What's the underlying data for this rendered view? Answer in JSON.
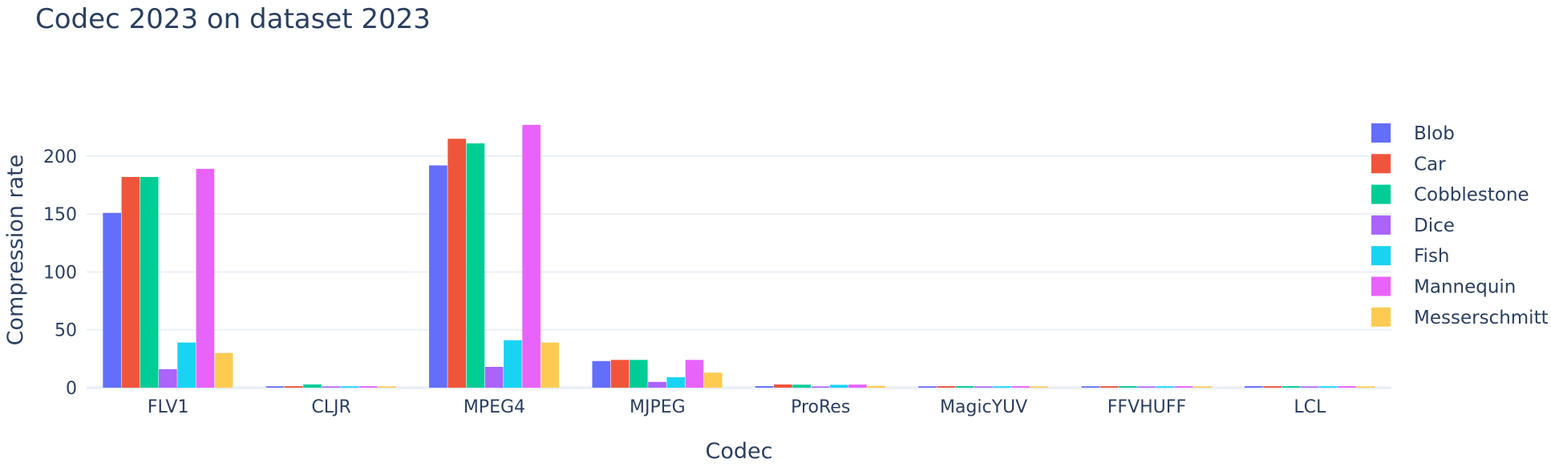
{
  "chart_data": {
    "type": "bar",
    "title": "Codec 2023 on dataset 2023",
    "xlabel": "Codec",
    "ylabel": "Compression rate",
    "categories": [
      "FLV1",
      "CLJR",
      "MPEG4",
      "MJPEG",
      "ProRes",
      "MagicYUV",
      "FFVHUFF",
      "LCL"
    ],
    "ylim": [
      0,
      238
    ],
    "yticks": [
      0,
      50,
      100,
      150,
      200
    ],
    "grid": true,
    "legend_position": "right",
    "series": [
      {
        "name": "Blob",
        "color": "#636efa",
        "values": [
          151,
          1.2,
          192,
          23,
          1.3,
          1.2,
          1.2,
          1.3
        ]
      },
      {
        "name": "Car",
        "color": "#ef553b",
        "values": [
          182,
          1.3,
          215,
          24,
          2.8,
          1.3,
          1.3,
          1.3
        ]
      },
      {
        "name": "Cobblestone",
        "color": "#00cc96",
        "values": [
          182,
          2.8,
          211,
          24,
          2.6,
          1.3,
          1.3,
          1.3
        ]
      },
      {
        "name": "Dice",
        "color": "#ab63fa",
        "values": [
          16,
          1.1,
          18,
          5,
          1.1,
          1.1,
          1.1,
          1.1
        ]
      },
      {
        "name": "Fish",
        "color": "#19d3f3",
        "values": [
          39,
          1.2,
          41,
          9,
          2.5,
          1.2,
          1.2,
          1.2
        ]
      },
      {
        "name": "Mannequin",
        "color": "#e763fa",
        "values": [
          189,
          1.3,
          227,
          24,
          2.7,
          1.3,
          1.3,
          1.3
        ]
      },
      {
        "name": "Messerschmitt",
        "color": "#fecb52",
        "values": [
          30,
          1.1,
          39,
          13,
          1.6,
          1.1,
          1.1,
          1.1
        ]
      }
    ]
  }
}
